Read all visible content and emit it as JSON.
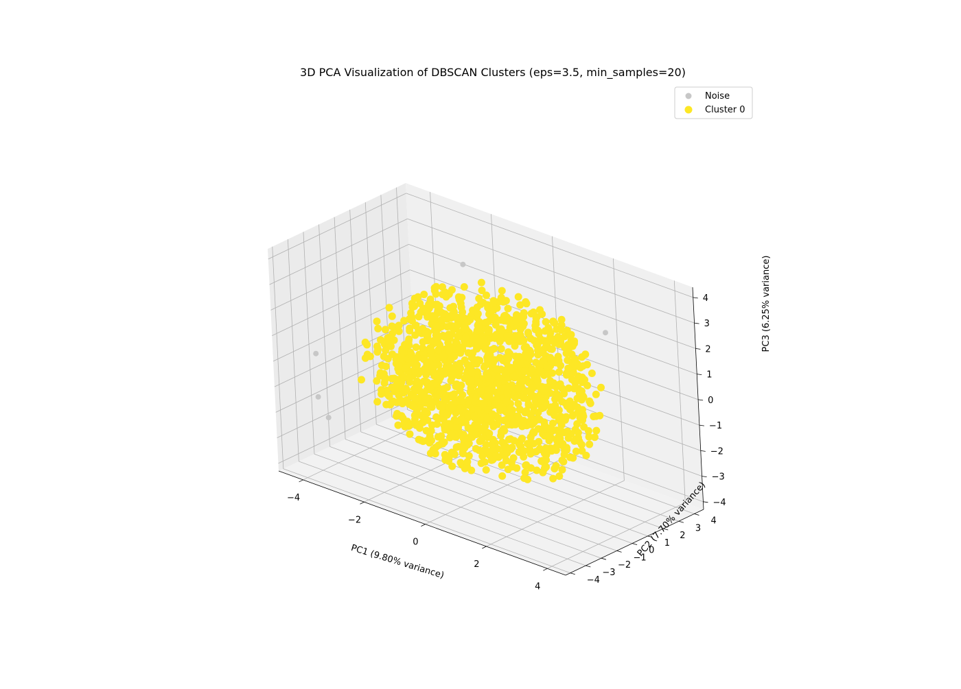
{
  "chart_data": {
    "type": "scatter",
    "title": "3D PCA Visualization of DBSCAN Clusters (eps=3.5, min_samples=20)",
    "xlabel": "PC1 (9.80% variance)",
    "ylabel": "PC2 (7.70% variance)",
    "zlabel": "PC3 (6.25% variance)",
    "xlim": [
      -4.8,
      4.6
    ],
    "ylim": [
      -4.3,
      4.6
    ],
    "zlim": [
      -4.3,
      4.4
    ],
    "xticks": [
      "−4",
      "−2",
      "0",
      "2",
      "4"
    ],
    "yticks": [
      "−4",
      "−3",
      "−2",
      "−1",
      "0",
      "1",
      "2",
      "3",
      "4"
    ],
    "zticks": [
      "−4",
      "−3",
      "−2",
      "−1",
      "0",
      "1",
      "2",
      "3",
      "4"
    ],
    "grid": true,
    "legend_position": "upper-right",
    "series": [
      {
        "name": "Noise",
        "color": "#c7c7c7",
        "points": [
          {
            "x": -4.0,
            "y": -3.1,
            "z": 0.3
          },
          {
            "x": -4.1,
            "y": -2.9,
            "z": -1.5
          },
          {
            "x": -3.1,
            "y": -4.2,
            "z": -1.5
          },
          {
            "x": -2.6,
            "y": 3.8,
            "z": 2.4
          },
          {
            "x": 2.2,
            "y": 3.5,
            "z": 1.9
          }
        ]
      },
      {
        "name": "Cluster 0",
        "color": "#fde725",
        "distribution": "dense roughly spherical cloud centered near the origin",
        "center": [
          0,
          0,
          0
        ],
        "spread": [
          3.0,
          3.2,
          2.9
        ]
      }
    ]
  }
}
